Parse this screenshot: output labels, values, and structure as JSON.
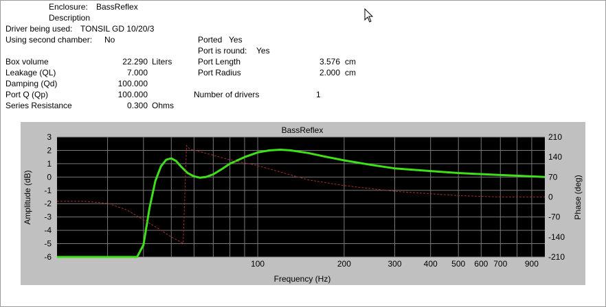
{
  "info": {
    "enclosure_label": "Enclosure:",
    "enclosure_value": "BassReflex",
    "description_label": "Description",
    "driver_label": "Driver being used:",
    "driver_value": "TONSIL GD 10/20/3",
    "second_chamber_label": "Using second chamber:",
    "second_chamber_value": "No",
    "box_volume_label": "Box volume",
    "box_volume_value": "22.290",
    "box_volume_unit": "Liters",
    "leakage_label": "Leakage (QL)",
    "leakage_value": "7.000",
    "damping_label": "Damping (Qd)",
    "damping_value": "100.000",
    "portq_label": "Port Q (Qp)",
    "portq_value": "100.000",
    "series_label": "Series Resistance",
    "series_value": "0.300",
    "series_unit": "Ohms",
    "ported_label": "Ported",
    "ported_value": "Yes",
    "round_label": "Port is round:",
    "round_value": "Yes",
    "port_length_label": "Port Length",
    "port_length_value": "3.576",
    "port_length_unit": "cm",
    "port_radius_label": "Port Radius",
    "port_radius_value": "2.000",
    "port_radius_unit": "cm",
    "num_drivers_label": "Number of drivers",
    "num_drivers_value": "1"
  },
  "icons": {
    "cursor": "mouse-pointer-icon"
  },
  "colors": {
    "panel": "#c0c0c0",
    "plot_bg": "#000000",
    "grid": "#7a7a7a",
    "amplitude": "#3fe01a",
    "phase": "#a03030"
  },
  "chart_data": {
    "type": "line",
    "title": "BassReflex",
    "xlabel": "Frequency (Hz)",
    "ylabel": "Amplitude (dB)",
    "y2label": "Phase (deg)",
    "x_scale": "log",
    "xlim": [
      20,
      1000
    ],
    "ylim": [
      -6,
      3
    ],
    "y2lim": [
      -210,
      210
    ],
    "x_ticks": [
      100,
      200,
      300,
      400,
      500,
      600,
      700,
      900
    ],
    "x_tick_labels": [
      "100",
      "200",
      "300",
      "400",
      "500",
      "600",
      "700",
      "900"
    ],
    "x_gridlines": [
      30,
      40,
      50,
      60,
      70,
      80,
      90,
      100,
      200,
      300,
      400,
      500,
      600,
      700,
      800,
      900
    ],
    "y_ticks": [
      3,
      2,
      1,
      0,
      -1,
      -2,
      -3,
      -4,
      -5,
      -6
    ],
    "y_tick_labels": [
      "3",
      "2",
      "1",
      "0",
      "-1",
      "-2",
      "-3",
      "-4",
      "-5",
      "-6"
    ],
    "y2_ticks": [
      210,
      140,
      70,
      0,
      -70,
      -140,
      -210
    ],
    "y2_tick_labels": [
      "210",
      "140",
      "70",
      "0",
      "-70",
      "-140",
      "-210"
    ],
    "grid": true,
    "series": [
      {
        "axis": "left",
        "x": [
          20,
          30,
          38,
          40,
          42,
          44,
          46,
          48,
          50,
          52,
          54,
          57,
          60,
          63,
          66,
          70,
          75,
          80,
          90,
          100,
          110,
          120,
          130,
          150,
          170,
          200,
          250,
          300,
          400,
          500,
          600,
          700,
          800,
          900,
          1000
        ],
        "y": [
          -6,
          -6,
          -6,
          -5.1,
          -2.3,
          -0.3,
          0.8,
          1.3,
          1.4,
          1.2,
          0.8,
          0.3,
          0.05,
          -0.05,
          0.0,
          0.2,
          0.6,
          1.0,
          1.5,
          1.85,
          2.0,
          2.05,
          2.0,
          1.8,
          1.55,
          1.25,
          0.9,
          0.65,
          0.45,
          0.3,
          0.22,
          0.15,
          0.1,
          0.05,
          0.0
        ]
      },
      {
        "axis": "right",
        "x": [
          20,
          25,
          30,
          35,
          40,
          45,
          50,
          55,
          56.5,
          58,
          65,
          80,
          100,
          150,
          200,
          300,
          500,
          700,
          1000
        ],
        "y": [
          -15,
          -15,
          -22,
          -45,
          -80,
          -110,
          -140,
          -162,
          180,
          168,
          155,
          130,
          110,
          60,
          40,
          20,
          5,
          0,
          0
        ]
      }
    ]
  }
}
